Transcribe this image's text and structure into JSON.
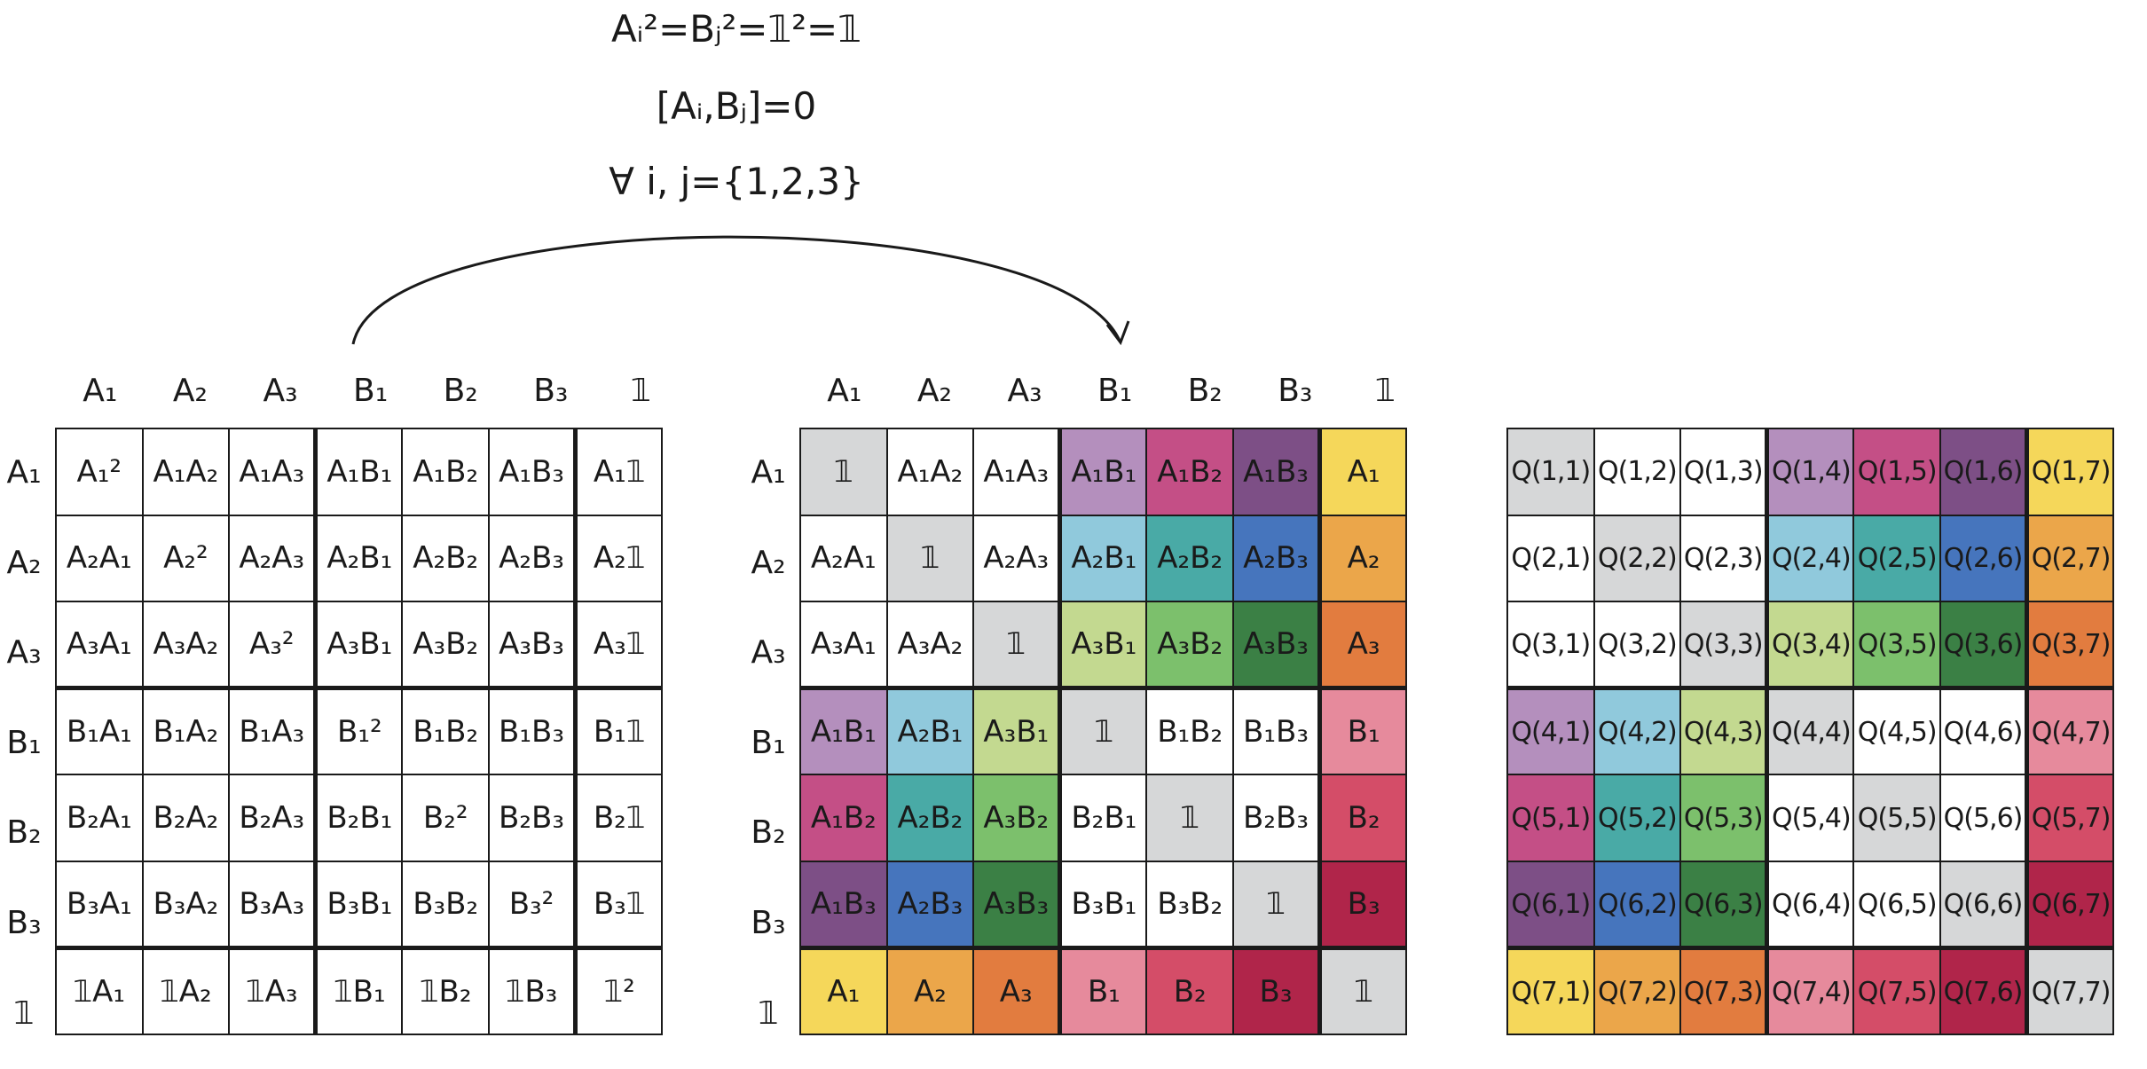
{
  "equations": [
    "Aᵢ²=Bⱼ²=𝟙²=𝟙",
    "[Aᵢ,Bⱼ]=0",
    "∀ i, j={1,2,3}"
  ],
  "labels": [
    "A₁",
    "A₂",
    "A₃",
    "B₁",
    "B₂",
    "B₃",
    "𝟙"
  ],
  "colors": {
    "white": "#ffffff",
    "identity": "#d6d7d8",
    "A1B1": "#b48fbd",
    "A1B2": "#c44f86",
    "A1B3": "#7d4f86",
    "A2B1": "#90c9dc",
    "A2B2": "#49aaa6",
    "A2B3": "#4675bd",
    "A3B1": "#c3d990",
    "A3B2": "#7cc06c",
    "A3B3": "#3b8045",
    "A1": "#f5d75a",
    "A2": "#eba64a",
    "A3": "#e27c3f",
    "B1": "#e68a9c",
    "B2": "#d44d68",
    "B3": "#b0254a"
  },
  "grid1": [
    [
      "A₁²",
      "A₁A₂",
      "A₁A₃",
      "A₁B₁",
      "A₁B₂",
      "A₁B₃",
      "A₁𝟙"
    ],
    [
      "A₂A₁",
      "A₂²",
      "A₂A₃",
      "A₂B₁",
      "A₂B₂",
      "A₂B₃",
      "A₂𝟙"
    ],
    [
      "A₃A₁",
      "A₃A₂",
      "A₃²",
      "A₃B₁",
      "A₃B₂",
      "A₃B₃",
      "A₃𝟙"
    ],
    [
      "B₁A₁",
      "B₁A₂",
      "B₁A₃",
      "B₁²",
      "B₁B₂",
      "B₁B₃",
      "B₁𝟙"
    ],
    [
      "B₂A₁",
      "B₂A₂",
      "B₂A₃",
      "B₂B₁",
      "B₂²",
      "B₂B₃",
      "B₂𝟙"
    ],
    [
      "B₃A₁",
      "B₃A₂",
      "B₃A₃",
      "B₃B₁",
      "B₃B₂",
      "B₃²",
      "B₃𝟙"
    ],
    [
      "𝟙A₁",
      "𝟙A₂",
      "𝟙A₃",
      "𝟙B₁",
      "𝟙B₂",
      "𝟙B₃",
      "𝟙²"
    ]
  ],
  "grid2": [
    [
      "𝟙",
      "A₁A₂",
      "A₁A₃",
      "A₁B₁",
      "A₁B₂",
      "A₁B₃",
      "A₁"
    ],
    [
      "A₂A₁",
      "𝟙",
      "A₂A₃",
      "A₂B₁",
      "A₂B₂",
      "A₂B₃",
      "A₂"
    ],
    [
      "A₃A₁",
      "A₃A₂",
      "𝟙",
      "A₃B₁",
      "A₃B₂",
      "A₃B₃",
      "A₃"
    ],
    [
      "A₁B₁",
      "A₂B₁",
      "A₃B₁",
      "𝟙",
      "B₁B₂",
      "B₁B₃",
      "B₁"
    ],
    [
      "A₁B₂",
      "A₂B₂",
      "A₃B₂",
      "B₂B₁",
      "𝟙",
      "B₂B₃",
      "B₂"
    ],
    [
      "A₁B₃",
      "A₂B₃",
      "A₃B₃",
      "B₃B₁",
      "B₃B₂",
      "𝟙",
      "B₃"
    ],
    [
      "A₁",
      "A₂",
      "A₃",
      "B₁",
      "B₂",
      "B₃",
      "𝟙"
    ]
  ],
  "grid3": [
    [
      "Q(1,1)",
      "Q(1,2)",
      "Q(1,3)",
      "Q(1,4)",
      "Q(1,5)",
      "Q(1,6)",
      "Q(1,7)"
    ],
    [
      "Q(2,1)",
      "Q(2,2)",
      "Q(2,3)",
      "Q(2,4)",
      "Q(2,5)",
      "Q(2,6)",
      "Q(2,7)"
    ],
    [
      "Q(3,1)",
      "Q(3,2)",
      "Q(3,3)",
      "Q(3,4)",
      "Q(3,5)",
      "Q(3,6)",
      "Q(3,7)"
    ],
    [
      "Q(4,1)",
      "Q(4,2)",
      "Q(4,3)",
      "Q(4,4)",
      "Q(4,5)",
      "Q(4,6)",
      "Q(4,7)"
    ],
    [
      "Q(5,1)",
      "Q(5,2)",
      "Q(5,3)",
      "Q(5,4)",
      "Q(5,5)",
      "Q(5,6)",
      "Q(5,7)"
    ],
    [
      "Q(6,1)",
      "Q(6,2)",
      "Q(6,3)",
      "Q(6,4)",
      "Q(6,5)",
      "Q(6,6)",
      "Q(6,7)"
    ],
    [
      "Q(7,1)",
      "Q(7,2)",
      "Q(7,3)",
      "Q(7,4)",
      "Q(7,5)",
      "Q(7,6)",
      "Q(7,7)"
    ]
  ],
  "color_map": [
    [
      "identity",
      "white",
      "white",
      "A1B1",
      "A1B2",
      "A1B3",
      "A1"
    ],
    [
      "white",
      "identity",
      "white",
      "A2B1",
      "A2B2",
      "A2B3",
      "A2"
    ],
    [
      "white",
      "white",
      "identity",
      "A3B1",
      "A3B2",
      "A3B3",
      "A3"
    ],
    [
      "A1B1",
      "A2B1",
      "A3B1",
      "identity",
      "white",
      "white",
      "B1"
    ],
    [
      "A1B2",
      "A2B2",
      "A3B2",
      "white",
      "identity",
      "white",
      "B2"
    ],
    [
      "A1B3",
      "A2B3",
      "A3B3",
      "white",
      "white",
      "identity",
      "B3"
    ],
    [
      "A1",
      "A2",
      "A3",
      "B1",
      "B2",
      "B3",
      "identity"
    ]
  ]
}
